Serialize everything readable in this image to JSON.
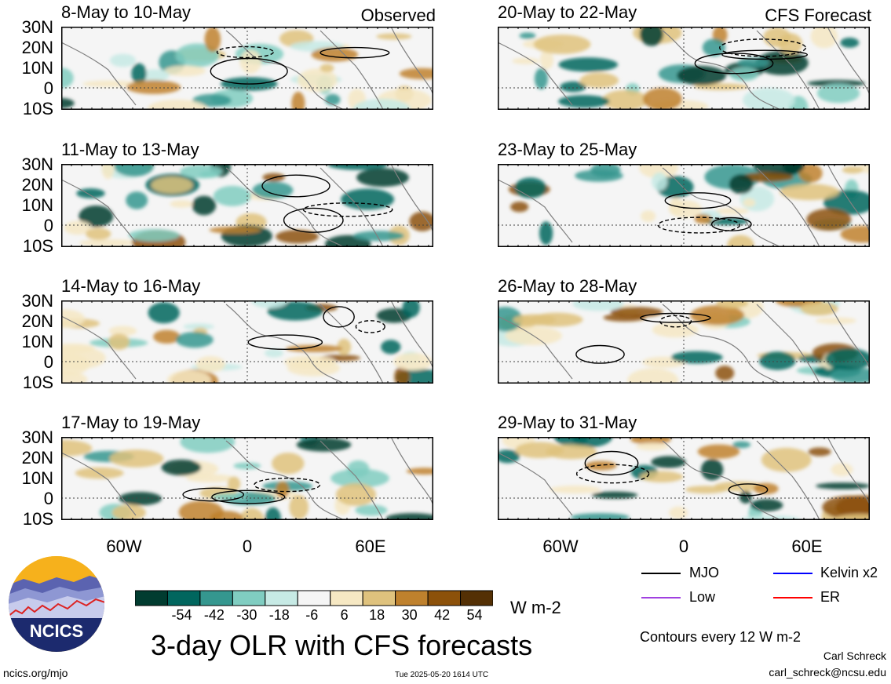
{
  "panels": [
    {
      "period": "8-May to 10-May",
      "label": "Observed"
    },
    {
      "period": "20-May to 22-May",
      "label": "CFS Forecast"
    },
    {
      "period": "11-May to 13-May",
      "label": ""
    },
    {
      "period": "23-May to 25-May",
      "label": ""
    },
    {
      "period": "14-May to 16-May",
      "label": ""
    },
    {
      "period": "26-May to 28-May",
      "label": ""
    },
    {
      "period": "17-May to 19-May",
      "label": ""
    },
    {
      "period": "29-May to 31-May",
      "label": ""
    }
  ],
  "lat_labels": [
    "30N",
    "20N",
    "10N",
    "0",
    "10S"
  ],
  "lon_labels": [
    "60W",
    "0",
    "60E"
  ],
  "colorbar": {
    "colors": [
      "#013c30",
      "#01665e",
      "#35978f",
      "#80cdc1",
      "#c7eae5",
      "#f5f5f5",
      "#f6e8c3",
      "#dfc27d",
      "#bf812d",
      "#8c510a",
      "#543005"
    ],
    "labels": [
      "-54",
      "-42",
      "-30",
      "-18",
      "-6",
      "6",
      "18",
      "30",
      "42",
      "54"
    ],
    "units": "W m-2"
  },
  "legend": [
    {
      "name": "MJO",
      "color": "#000000"
    },
    {
      "name": "Kelvin x2",
      "color": "#0000ff"
    },
    {
      "name": "Low",
      "color": "#a040e0"
    },
    {
      "name": "ER",
      "color": "#ff0000"
    }
  ],
  "logo_text": "NCICS",
  "title": "3-day OLR with CFS forecasts",
  "contour_note": "Contours every 12 W m-2",
  "author": "Carl Schreck",
  "email": "carl_schreck@ncsu.edu",
  "url": "ncics.org/mjo",
  "timestamp": "Tue 2025-05-20 1614 UTC"
}
